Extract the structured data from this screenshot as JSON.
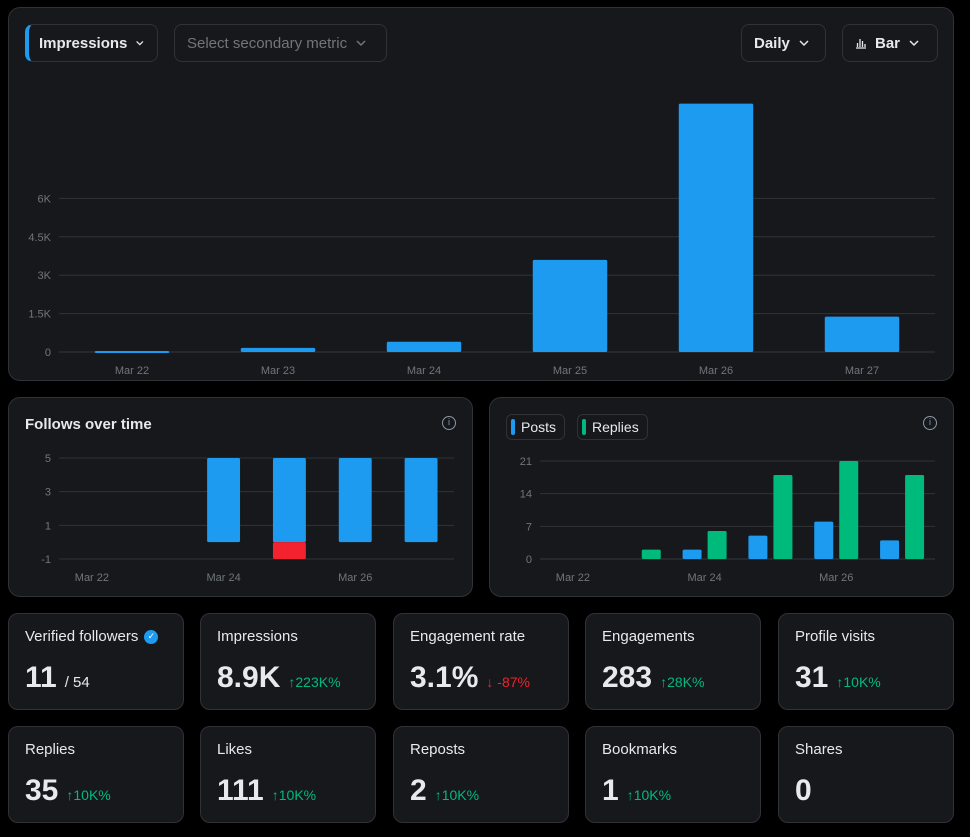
{
  "colors": {
    "blue": "#1d9bf0",
    "green": "#00ba7c",
    "red": "#f4212e",
    "grid": "#2f3336",
    "axis_text": "#71767b"
  },
  "main_chart": {
    "primary_metric": "Impressions",
    "secondary_placeholder": "Select secondary metric",
    "interval": "Daily",
    "chart_type": "Bar",
    "icons": {
      "dropdown": "chevron-down-icon",
      "chart_type": "bar-chart-icon"
    }
  },
  "follows_panel": {
    "title": "Follows over time",
    "info_icon": "info-icon"
  },
  "posts_panel": {
    "legend": [
      "Posts",
      "Replies"
    ],
    "info_icon": "info-icon"
  },
  "chart_data": [
    {
      "type": "bar",
      "categories": [
        "Mar 22",
        "Mar 23",
        "Mar 24",
        "Mar 25",
        "Mar 26",
        "Mar 27"
      ],
      "series": [
        {
          "name": "Impressions",
          "values": [
            40,
            160,
            400,
            3600,
            9700,
            1380
          ]
        }
      ],
      "ylim": [
        0,
        10000
      ],
      "yticks": [
        "0",
        "1.5K",
        "3K",
        "4.5K",
        "6K"
      ],
      "grid": true
    },
    {
      "type": "bar",
      "title": "Follows over time",
      "categories": [
        "Mar 22",
        "Mar 23",
        "Mar 24",
        "Mar 25",
        "Mar 26",
        "Mar 27"
      ],
      "x_labels": [
        "Mar 22",
        "Mar 24",
        "Mar 26"
      ],
      "series": [
        {
          "name": "Follows",
          "values": [
            0,
            0,
            5,
            5,
            5,
            5
          ]
        },
        {
          "name": "Unfollows",
          "values": [
            0,
            0,
            0,
            -1,
            0,
            0
          ]
        }
      ],
      "ylim": [
        -1,
        5
      ],
      "yticks": [
        "-1",
        "1",
        "3",
        "5"
      ],
      "grid": true
    },
    {
      "type": "bar",
      "categories": [
        "Mar 22",
        "Mar 23",
        "Mar 24",
        "Mar 25",
        "Mar 26",
        "Mar 27"
      ],
      "x_labels": [
        "Mar 22",
        "Mar 24",
        "Mar 26"
      ],
      "series": [
        {
          "name": "Posts",
          "values": [
            0,
            0,
            2,
            5,
            8,
            4
          ]
        },
        {
          "name": "Replies",
          "values": [
            0,
            2,
            6,
            18,
            21,
            18
          ]
        }
      ],
      "ylim": [
        0,
        21
      ],
      "yticks": [
        "0",
        "7",
        "14",
        "21"
      ],
      "legend": "top-left",
      "grid": true
    }
  ],
  "stats": [
    {
      "label": "Verified followers",
      "value": "11",
      "sub": "/ 54",
      "change": "",
      "dir": "",
      "icon": "verified-badge-icon"
    },
    {
      "label": "Impressions",
      "value": "8.9K",
      "change": "223K%",
      "dir": "up"
    },
    {
      "label": "Engagement rate",
      "value": "3.1%",
      "change": "-87%",
      "dir": "down"
    },
    {
      "label": "Engagements",
      "value": "283",
      "change": "28K%",
      "dir": "up"
    },
    {
      "label": "Profile visits",
      "value": "31",
      "change": "10K%",
      "dir": "up"
    },
    {
      "label": "Replies",
      "value": "35",
      "change": "10K%",
      "dir": "up"
    },
    {
      "label": "Likes",
      "value": "111",
      "change": "10K%",
      "dir": "up"
    },
    {
      "label": "Reposts",
      "value": "2",
      "change": "10K%",
      "dir": "up"
    },
    {
      "label": "Bookmarks",
      "value": "1",
      "change": "10K%",
      "dir": "up"
    },
    {
      "label": "Shares",
      "value": "0",
      "change": "",
      "dir": ""
    }
  ]
}
